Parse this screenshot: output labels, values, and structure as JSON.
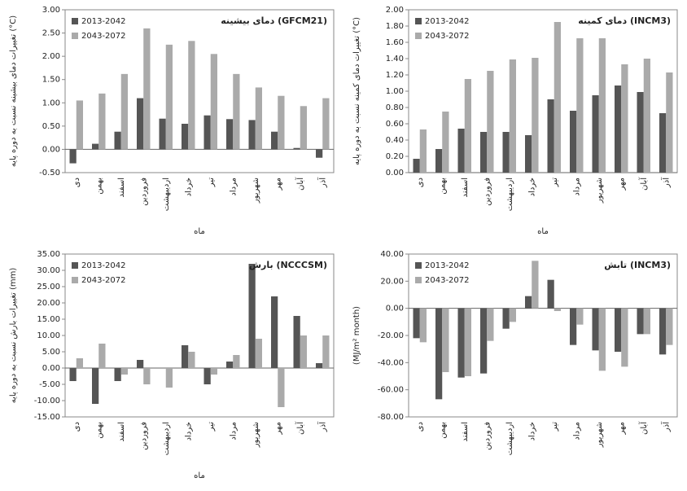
{
  "chart_data": [
    {
      "type": "bar",
      "title": "دمای بیشینه (GFCM21)",
      "y_label": "تغییرات دمای بیشینه نسبت به دوره پایه (°C)",
      "x_label": "ماه",
      "categories": [
        "دی",
        "بهمن",
        "اسفند",
        "فروردین",
        "اردیبهشت",
        "خرداد",
        "تیر",
        "مرداد",
        "شهریور",
        "مهر",
        "آبان",
        "آذر"
      ],
      "series": [
        {
          "name": "2013-2042",
          "color": "#555555",
          "values": [
            -0.3,
            0.12,
            0.38,
            1.1,
            0.66,
            0.55,
            0.73,
            0.65,
            0.63,
            0.38,
            0.03,
            -0.18
          ]
        },
        {
          "name": "2043-2072",
          "color": "#aaaaaa",
          "values": [
            1.05,
            1.2,
            1.62,
            2.6,
            2.25,
            2.33,
            2.05,
            1.62,
            1.33,
            1.15,
            0.93,
            1.1
          ]
        }
      ],
      "ylim": [
        -0.5,
        3.0
      ],
      "yticks": [
        {
          "value": -0.5,
          "label": "-0.50"
        },
        {
          "value": 0,
          "label": "0.00"
        },
        {
          "value": 0.5,
          "label": "0.50"
        },
        {
          "value": 1,
          "label": "1.00"
        },
        {
          "value": 1.5,
          "label": "1.50"
        },
        {
          "value": 2,
          "label": "2.00"
        },
        {
          "value": 2.5,
          "label": "2.50"
        },
        {
          "value": 3,
          "label": "3.00"
        }
      ],
      "legend": "top-left"
    },
    {
      "type": "bar",
      "title": "دمای کمینه (INCM3)",
      "y_label": "تغییرات دمای کمینه نسبت به دوره پایه (°C)",
      "x_label": "ماه",
      "categories": [
        "دی",
        "بهمن",
        "اسفند",
        "فروردین",
        "اردیبهشت",
        "خرداد",
        "تیر",
        "مرداد",
        "شهریور",
        "مهر",
        "آبان",
        "آذر"
      ],
      "series": [
        {
          "name": "2013-2042",
          "color": "#555555",
          "values": [
            0.17,
            0.29,
            0.54,
            0.5,
            0.5,
            0.46,
            0.9,
            0.76,
            0.95,
            1.07,
            0.99,
            0.73
          ]
        },
        {
          "name": "2043-2072",
          "color": "#aaaaaa",
          "values": [
            0.53,
            0.75,
            1.15,
            1.25,
            1.39,
            1.41,
            1.85,
            1.65,
            1.65,
            1.33,
            1.4,
            1.23
          ]
        }
      ],
      "ylim": [
        0,
        2.0
      ],
      "yticks": [
        {
          "value": 0,
          "label": "0.00"
        },
        {
          "value": 0.2,
          "label": "0.20"
        },
        {
          "value": 0.4,
          "label": "0.40"
        },
        {
          "value": 0.6,
          "label": "0.60"
        },
        {
          "value": 0.8,
          "label": "0.80"
        },
        {
          "value": 1,
          "label": "1.00"
        },
        {
          "value": 1.2,
          "label": "1.20"
        },
        {
          "value": 1.4,
          "label": "1.40"
        },
        {
          "value": 1.6,
          "label": "1.60"
        },
        {
          "value": 1.8,
          "label": "1.80"
        },
        {
          "value": 2,
          "label": "2.00"
        }
      ],
      "legend": "top-left"
    },
    {
      "type": "bar",
      "title": "بارش (NCCCSM)",
      "y_label": "تغییرات بارش نسبت به دوره پایه (mm)",
      "x_label": "ماه",
      "categories": [
        "دی",
        "بهمن",
        "اسفند",
        "فروردین",
        "اردیبهشت",
        "خرداد",
        "تیر",
        "مرداد",
        "شهریور",
        "مهر",
        "آبان",
        "آذر"
      ],
      "series": [
        {
          "name": "2013-2042",
          "color": "#555555",
          "values": [
            -4,
            -11,
            -4,
            2.5,
            0,
            7,
            -5,
            2,
            32,
            22,
            16,
            1.5
          ]
        },
        {
          "name": "2043-2072",
          "color": "#aaaaaa",
          "values": [
            3,
            7.5,
            -2,
            -5,
            -6,
            5,
            -2,
            4,
            9,
            -12,
            10,
            10
          ]
        }
      ],
      "ylim": [
        -15,
        35
      ],
      "yticks": [
        {
          "value": -15,
          "label": "-15.00"
        },
        {
          "value": -10,
          "label": "-10.00"
        },
        {
          "value": -5,
          "label": "-5.00"
        },
        {
          "value": 0,
          "label": "0.00"
        },
        {
          "value": 5,
          "label": "5.00"
        },
        {
          "value": 10,
          "label": "10.00"
        },
        {
          "value": 15,
          "label": "15.00"
        },
        {
          "value": 20,
          "label": "20.00"
        },
        {
          "value": 25,
          "label": "25.00"
        },
        {
          "value": 30,
          "label": "30.00"
        },
        {
          "value": 35,
          "label": "35.00"
        }
      ],
      "legend": "top-left"
    },
    {
      "type": "bar",
      "title": "تابش (INCM3)",
      "y_label": "(MJ/m² month)",
      "categories": [
        "دی",
        "بهمن",
        "اسفند",
        "فروردین",
        "اردیبهشت",
        "خرداد",
        "تیر",
        "مرداد",
        "شهریور",
        "مهر",
        "آبان",
        "آذر"
      ],
      "series": [
        {
          "name": "2013-2042",
          "color": "#555555",
          "values": [
            -22,
            -67,
            -51,
            -48,
            -15,
            9,
            21,
            -27,
            -31,
            -32,
            -19,
            -34
          ]
        },
        {
          "name": "2043-2072",
          "color": "#aaaaaa",
          "values": [
            -25,
            -47,
            -50,
            -24,
            -10,
            35,
            -2,
            -12,
            -46,
            -43,
            -19,
            -27
          ]
        }
      ],
      "ylim": [
        -80,
        40
      ],
      "yticks": [
        {
          "value": -80,
          "label": "-80.00"
        },
        {
          "value": -60,
          "label": "-60.00"
        },
        {
          "value": -40,
          "label": "-40.00"
        },
        {
          "value": -20,
          "label": "-20.00"
        },
        {
          "value": 0,
          "label": "0.00"
        },
        {
          "value": 20,
          "label": "20.00"
        },
        {
          "value": 40,
          "label": "40.00"
        }
      ],
      "legend": "top-left"
    }
  ]
}
